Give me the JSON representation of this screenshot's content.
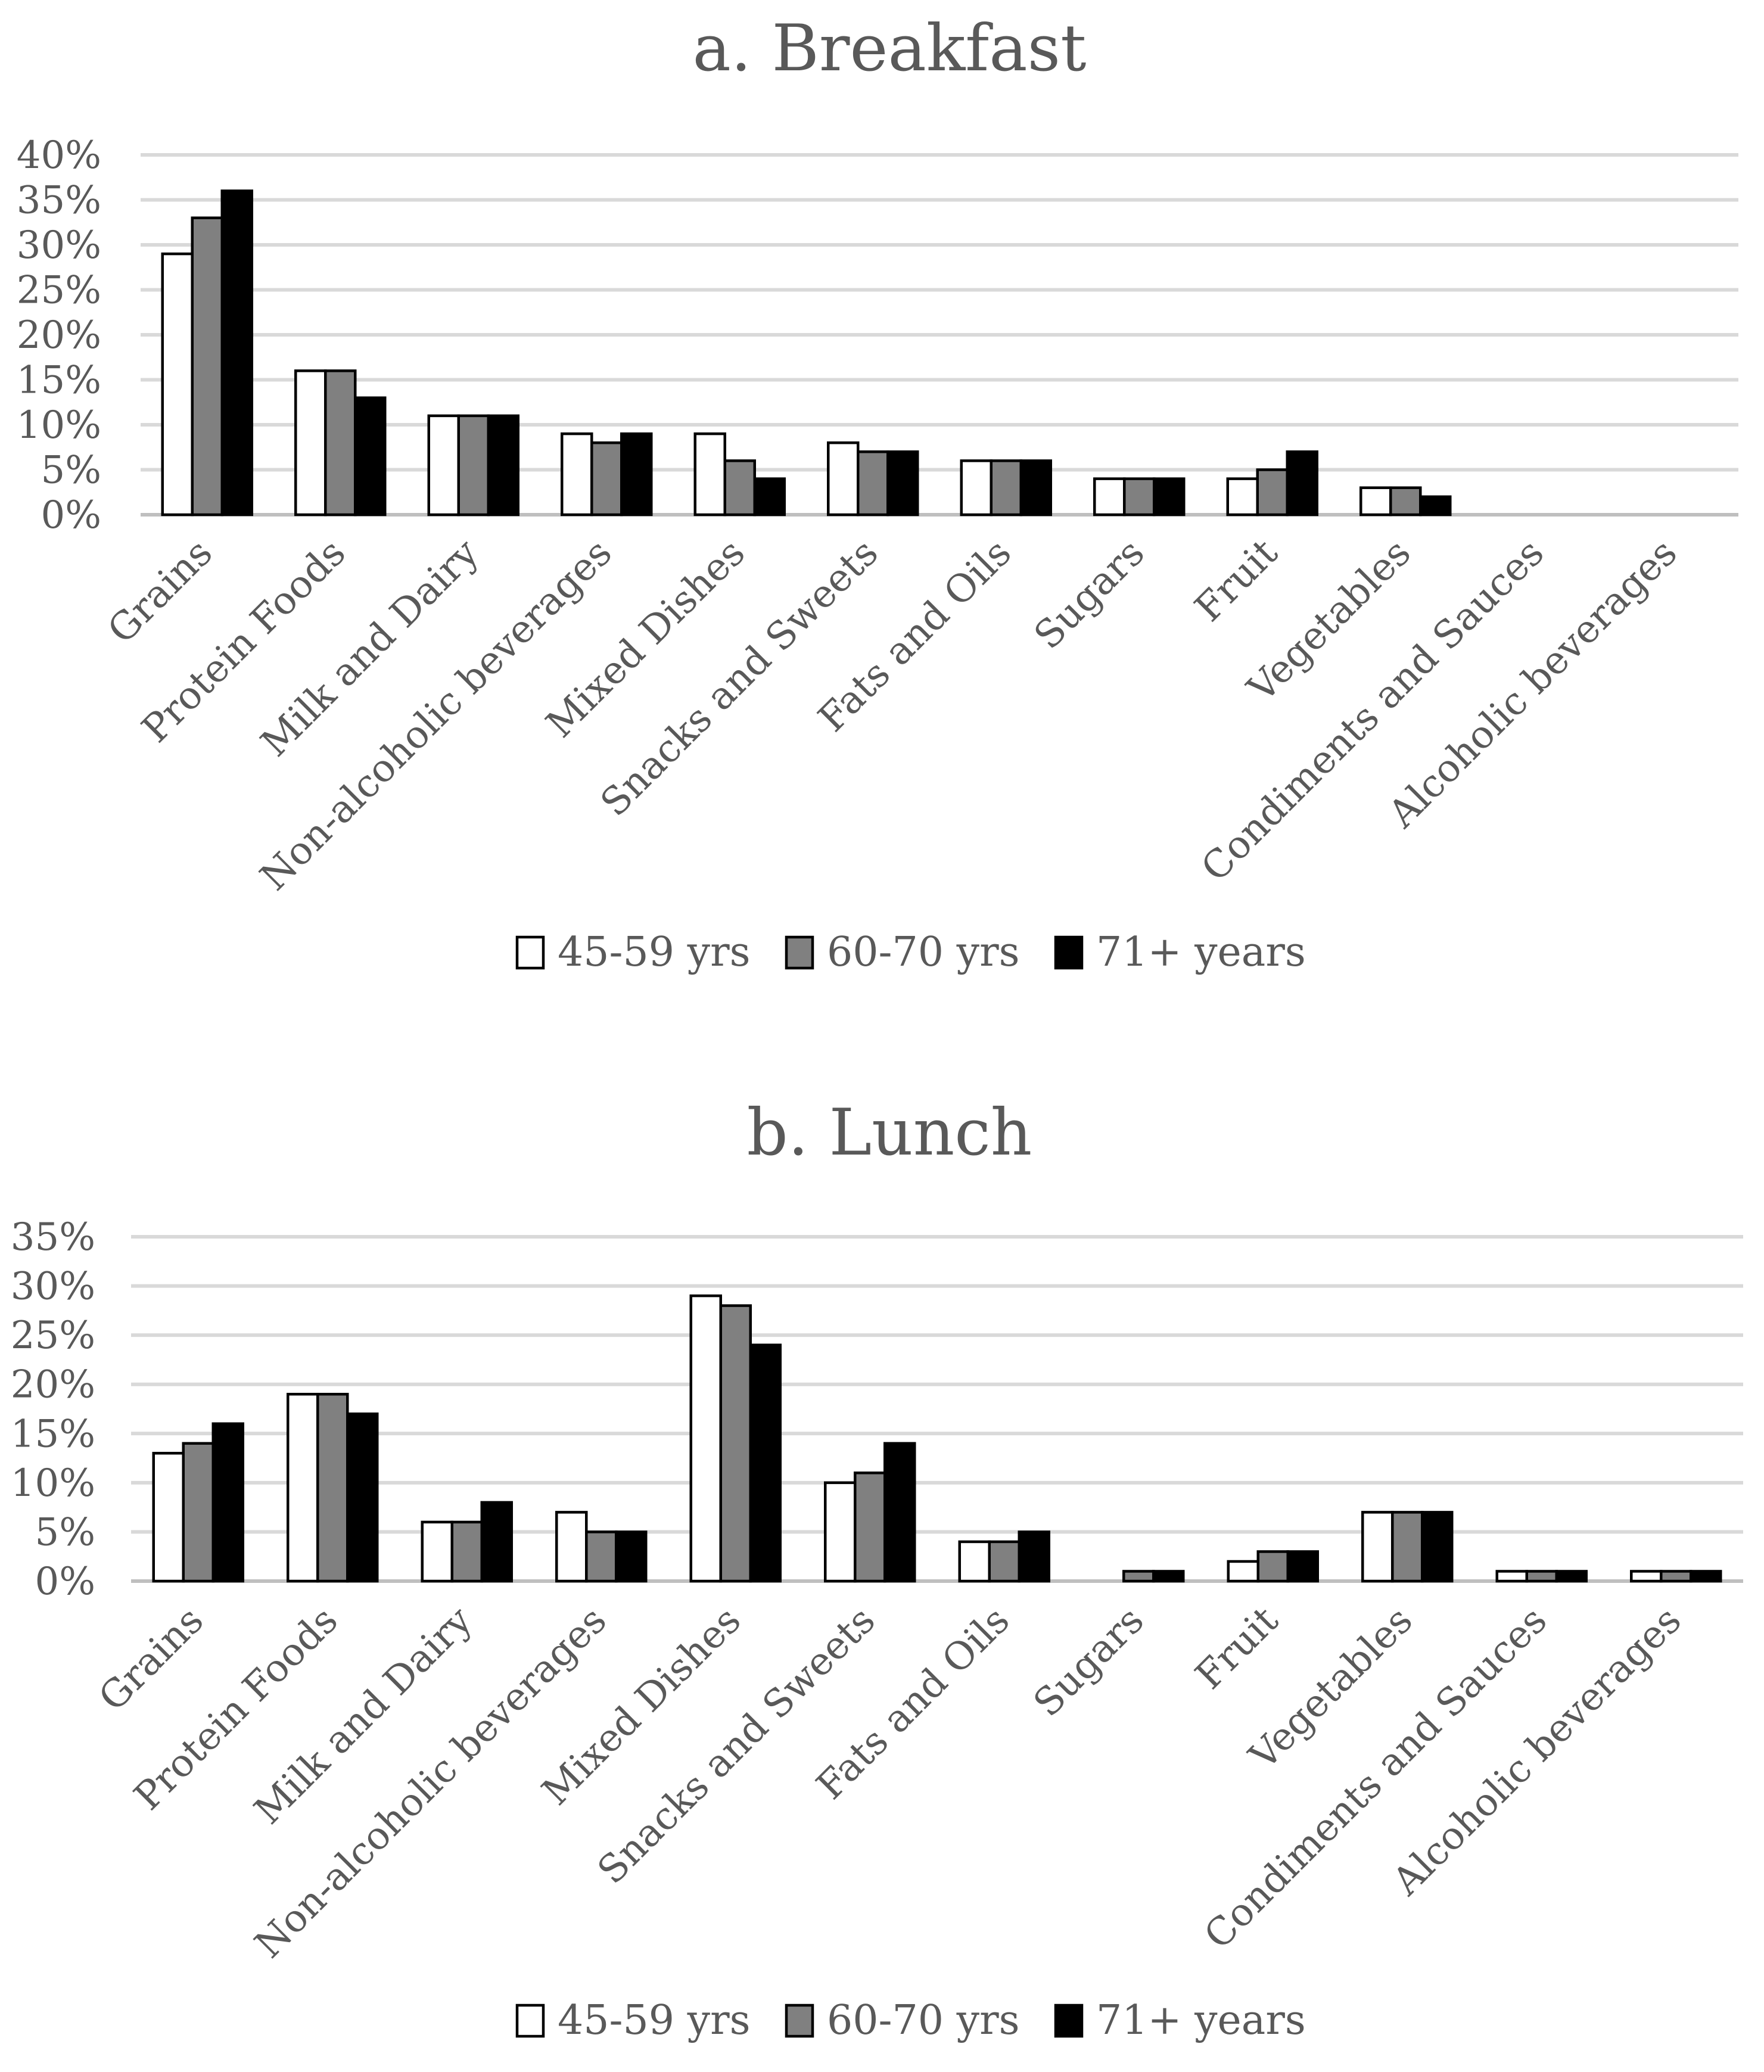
{
  "chart_data": [
    {
      "type": "bar",
      "title": "a. Breakfast",
      "categories": [
        "Grains",
        "Protein Foods",
        "Milk and Dairy",
        "Non-alcoholic beverages",
        "Mixed Dishes",
        "Snacks and Sweets",
        "Fats and Oils",
        "Sugars",
        "Fruit",
        "Vegetables",
        "Condiments and Sauces",
        "Alcoholic beverages"
      ],
      "series": [
        {
          "name": "45-59 yrs",
          "color": "#ffffff",
          "values": [
            29,
            16,
            11,
            9,
            9,
            8,
            6,
            4,
            4,
            3,
            0,
            0
          ]
        },
        {
          "name": "60-70 yrs",
          "color": "#808080",
          "values": [
            33,
            16,
            11,
            8,
            6,
            7,
            6,
            4,
            5,
            3,
            0,
            0
          ]
        },
        {
          "name": "71+ years",
          "color": "#000000",
          "values": [
            36,
            13,
            11,
            9,
            4,
            7,
            6,
            4,
            7,
            2,
            0,
            0
          ]
        }
      ],
      "ylim": [
        0,
        40
      ],
      "yticks": [
        "0%",
        "5%",
        "10%",
        "15%",
        "20%",
        "25%",
        "30%",
        "35%",
        "40%"
      ],
      "xlabel": "",
      "ylabel": "",
      "grid": true,
      "legend": "bottom-center"
    },
    {
      "type": "bar",
      "title": "b. Lunch",
      "categories": [
        "Grains",
        "Protein Foods",
        "Milk and Dairy",
        "Non-alcoholic beverages",
        "Mixed Dishes",
        "Snacks and Sweets",
        "Fats and Oils",
        "Sugars",
        "Fruit",
        "Vegetables",
        "Condiments and Sauces",
        "Alcoholic beverages"
      ],
      "series": [
        {
          "name": "45-59 yrs",
          "color": "#ffffff",
          "values": [
            13,
            19,
            6,
            7,
            29,
            10,
            4,
            0,
            2,
            7,
            1,
            1
          ]
        },
        {
          "name": "60-70 yrs",
          "color": "#808080",
          "values": [
            14,
            19,
            6,
            5,
            28,
            11,
            4,
            1,
            3,
            7,
            1,
            1
          ]
        },
        {
          "name": "71+ years",
          "color": "#000000",
          "values": [
            16,
            17,
            8,
            5,
            24,
            14,
            5,
            1,
            3,
            7,
            1,
            1
          ]
        }
      ],
      "ylim": [
        0,
        35
      ],
      "yticks": [
        "0%",
        "5%",
        "10%",
        "15%",
        "20%",
        "25%",
        "30%",
        "35%"
      ],
      "xlabel": "",
      "ylabel": "",
      "grid": true,
      "legend": "bottom-center"
    }
  ]
}
